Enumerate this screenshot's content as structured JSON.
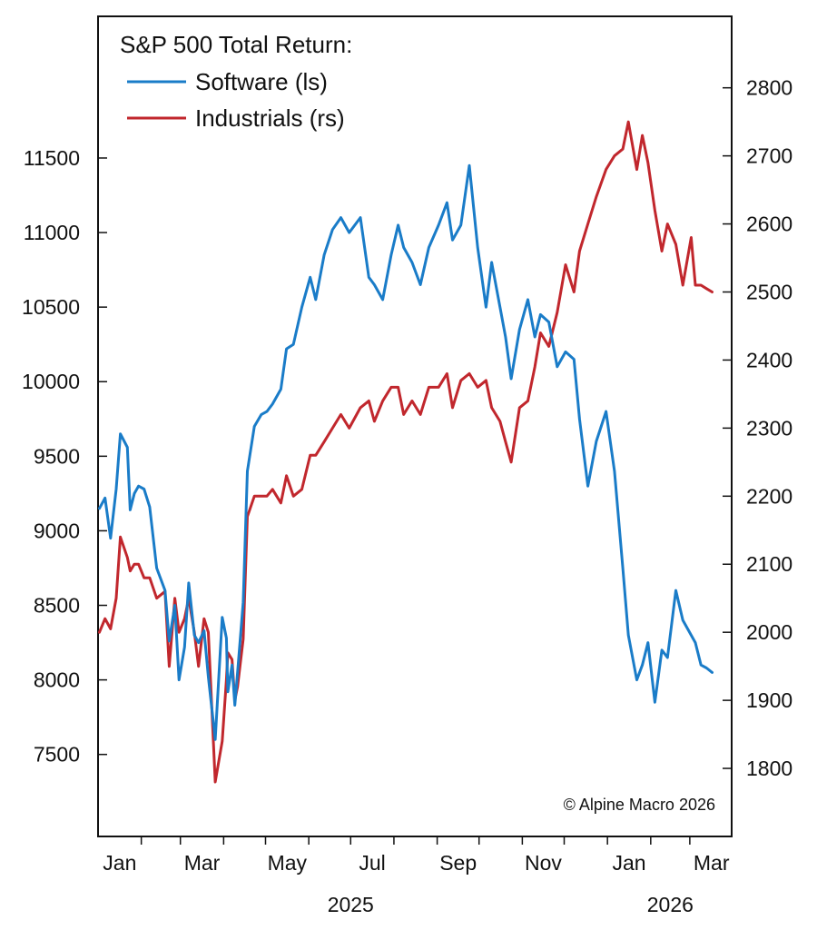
{
  "chart_data": {
    "type": "line",
    "legend": {
      "title": "S&P 500 Total Return:",
      "entries": [
        "Software (ls)",
        "Industrials (rs)"
      ],
      "placement": "top-left"
    },
    "credit": "© Alpine Macro 2026",
    "x_axis": {
      "month_labels": [
        "Jan",
        "Mar",
        "May",
        "Jul",
        "Sep",
        "Nov",
        "Jan",
        "Mar"
      ],
      "year_labels": [
        "2025",
        "2026"
      ]
    },
    "y_left": {
      "ticks": [
        7500,
        8000,
        8500,
        9000,
        9500,
        10000,
        10500,
        11000,
        11500
      ],
      "range": [
        6950,
        12450
      ]
    },
    "y_right": {
      "ticks": [
        1800,
        1900,
        2000,
        2100,
        2200,
        2300,
        2400,
        2500,
        2600,
        2700,
        2800
      ],
      "range": [
        1700,
        2905
      ]
    },
    "x_range": [
      "2025-01-01",
      "2026-03-31"
    ],
    "grid": false,
    "series": [
      {
        "name": "Software (ls)",
        "axis": "left",
        "color": "#1a7cc8",
        "x": [
          "2025-01-02",
          "2025-01-06",
          "2025-01-10",
          "2025-01-14",
          "2025-01-17",
          "2025-01-22",
          "2025-01-24",
          "2025-01-27",
          "2025-01-30",
          "2025-02-03",
          "2025-02-07",
          "2025-02-12",
          "2025-02-18",
          "2025-02-21",
          "2025-02-25",
          "2025-02-28",
          "2025-03-04",
          "2025-03-07",
          "2025-03-11",
          "2025-03-14",
          "2025-03-18",
          "2025-03-21",
          "2025-03-26",
          "2025-03-31",
          "2025-04-03",
          "2025-04-04",
          "2025-04-07",
          "2025-04-09",
          "2025-04-11",
          "2025-04-15",
          "2025-04-18",
          "2025-04-23",
          "2025-04-28",
          "2025-05-02",
          "2025-05-06",
          "2025-05-12",
          "2025-05-16",
          "2025-05-21",
          "2025-05-27",
          "2025-06-02",
          "2025-06-06",
          "2025-06-12",
          "2025-06-18",
          "2025-06-24",
          "2025-06-30",
          "2025-07-08",
          "2025-07-14",
          "2025-07-18",
          "2025-07-24",
          "2025-07-30",
          "2025-08-04",
          "2025-08-08",
          "2025-08-14",
          "2025-08-20",
          "2025-08-26",
          "2025-09-02",
          "2025-09-08",
          "2025-09-12",
          "2025-09-18",
          "2025-09-24",
          "2025-09-30",
          "2025-10-06",
          "2025-10-10",
          "2025-10-16",
          "2025-10-20",
          "2025-10-24",
          "2025-10-30",
          "2025-11-05",
          "2025-11-10",
          "2025-11-14",
          "2025-11-20",
          "2025-11-26",
          "2025-12-02",
          "2025-12-08",
          "2025-12-12",
          "2025-12-18",
          "2025-12-24",
          "2025-12-31",
          "2026-01-06",
          "2026-01-12",
          "2026-01-16",
          "2026-01-22",
          "2026-01-26",
          "2026-01-30",
          "2026-02-04",
          "2026-02-09",
          "2026-02-13",
          "2026-02-19",
          "2026-02-24",
          "2026-03-02",
          "2026-03-05",
          "2026-03-09",
          "2026-03-13",
          "2026-03-17"
        ],
        "values": [
          9150,
          9220,
          8950,
          9280,
          9650,
          9560,
          9140,
          9250,
          9300,
          9280,
          9160,
          8750,
          8600,
          8260,
          8500,
          8000,
          8220,
          8650,
          8300,
          8250,
          8330,
          8020,
          7600,
          8420,
          8280,
          7920,
          8100,
          7830,
          8050,
          8520,
          9400,
          9700,
          9780,
          9800,
          9850,
          9950,
          10220,
          10250,
          10500,
          10700,
          10550,
          10850,
          11020,
          11100,
          11000,
          11100,
          10700,
          10650,
          10550,
          10850,
          11050,
          10900,
          10800,
          10650,
          10900,
          11050,
          11200,
          10950,
          11050,
          11450,
          10900,
          10500,
          10800,
          10500,
          10300,
          10020,
          10350,
          10550,
          10300,
          10450,
          10400,
          10100,
          10200,
          10150,
          9750,
          9300,
          9600,
          9800,
          9400,
          8750,
          8300,
          8000,
          8100,
          8250,
          7850,
          8200,
          8150,
          8600,
          8400,
          8300,
          8250,
          8100,
          8080,
          8050
        ]
      },
      {
        "name": "Industrials (rs)",
        "axis": "right",
        "color": "#c1272d",
        "x": [
          "2025-01-02",
          "2025-01-06",
          "2025-01-10",
          "2025-01-14",
          "2025-01-17",
          "2025-01-22",
          "2025-01-24",
          "2025-01-27",
          "2025-01-30",
          "2025-02-03",
          "2025-02-07",
          "2025-02-12",
          "2025-02-18",
          "2025-02-21",
          "2025-02-25",
          "2025-02-28",
          "2025-03-04",
          "2025-03-07",
          "2025-03-11",
          "2025-03-14",
          "2025-03-18",
          "2025-03-21",
          "2025-03-26",
          "2025-03-31",
          "2025-04-03",
          "2025-04-04",
          "2025-04-07",
          "2025-04-09",
          "2025-04-11",
          "2025-04-15",
          "2025-04-18",
          "2025-04-23",
          "2025-04-28",
          "2025-05-02",
          "2025-05-06",
          "2025-05-12",
          "2025-05-16",
          "2025-05-21",
          "2025-05-27",
          "2025-06-02",
          "2025-06-06",
          "2025-06-12",
          "2025-06-18",
          "2025-06-24",
          "2025-06-30",
          "2025-07-08",
          "2025-07-14",
          "2025-07-18",
          "2025-07-24",
          "2025-07-30",
          "2025-08-04",
          "2025-08-08",
          "2025-08-14",
          "2025-08-20",
          "2025-08-26",
          "2025-09-02",
          "2025-09-08",
          "2025-09-12",
          "2025-09-18",
          "2025-09-24",
          "2025-09-30",
          "2025-10-06",
          "2025-10-10",
          "2025-10-16",
          "2025-10-20",
          "2025-10-24",
          "2025-10-30",
          "2025-11-05",
          "2025-11-10",
          "2025-11-14",
          "2025-11-20",
          "2025-11-26",
          "2025-12-02",
          "2025-12-08",
          "2025-12-12",
          "2025-12-18",
          "2025-12-24",
          "2025-12-31",
          "2026-01-06",
          "2026-01-12",
          "2026-01-16",
          "2026-01-22",
          "2026-01-26",
          "2026-01-30",
          "2026-02-04",
          "2026-02-09",
          "2026-02-13",
          "2026-02-19",
          "2026-02-24",
          "2026-03-02",
          "2026-03-05",
          "2026-03-09",
          "2026-03-13",
          "2026-03-17"
        ],
        "values": [
          2000,
          2020,
          2005,
          2050,
          2140,
          2110,
          2090,
          2100,
          2100,
          2080,
          2080,
          2050,
          2060,
          1950,
          2050,
          2000,
          2020,
          2050,
          2000,
          1950,
          2020,
          2000,
          1780,
          1840,
          1930,
          1970,
          1960,
          1900,
          1920,
          1990,
          2170,
          2200,
          2200,
          2200,
          2210,
          2190,
          2230,
          2200,
          2210,
          2260,
          2260,
          2280,
          2300,
          2320,
          2300,
          2330,
          2340,
          2310,
          2340,
          2360,
          2360,
          2320,
          2340,
          2320,
          2360,
          2360,
          2380,
          2330,
          2370,
          2380,
          2360,
          2370,
          2330,
          2310,
          2280,
          2250,
          2330,
          2340,
          2390,
          2440,
          2420,
          2470,
          2540,
          2500,
          2560,
          2600,
          2640,
          2680,
          2700,
          2710,
          2750,
          2680,
          2730,
          2690,
          2620,
          2560,
          2600,
          2570,
          2510,
          2580,
          2510,
          2510,
          2505,
          2500
        ]
      }
    ]
  }
}
